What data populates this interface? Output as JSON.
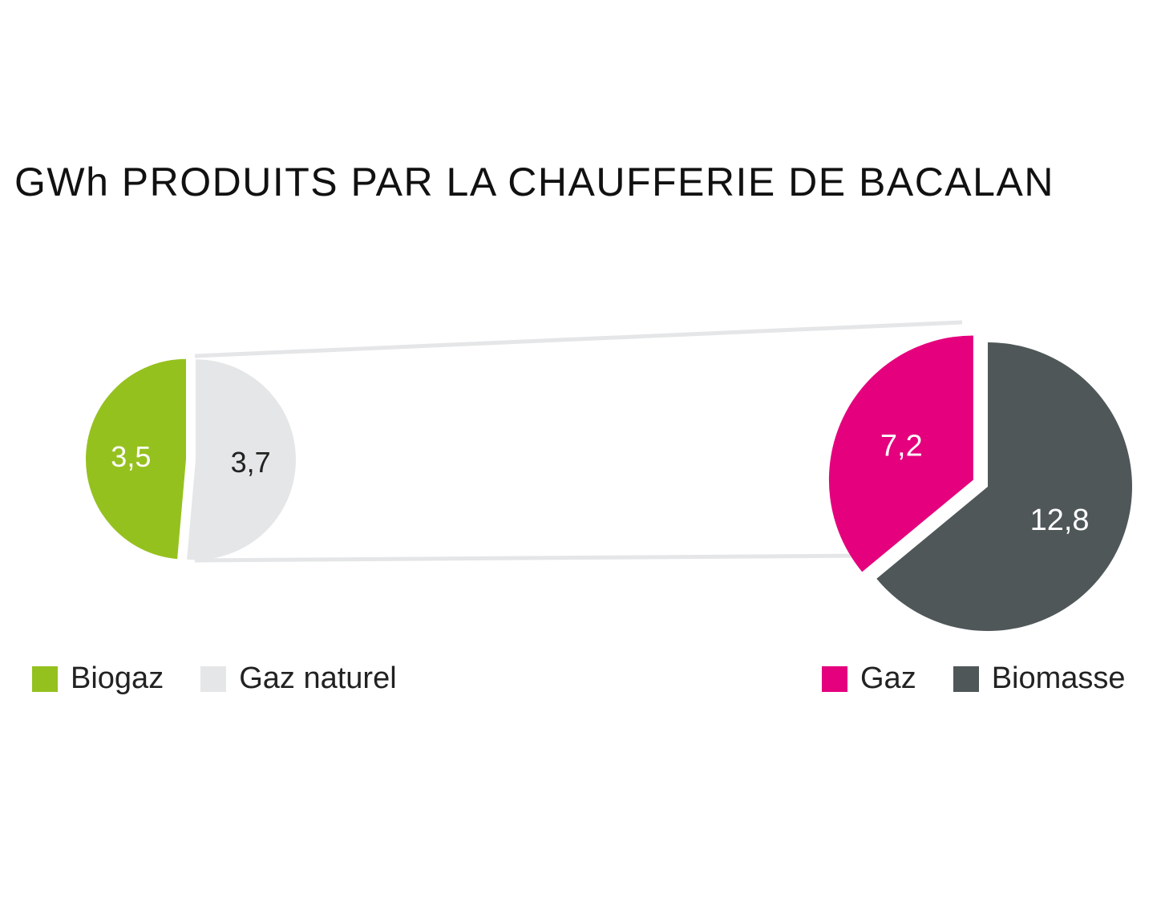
{
  "title": "GWh PRODUITS PAR LA CHAUFFERIE DE BACALAN",
  "chart_data": [
    {
      "type": "pie",
      "categories": [
        "Biogaz",
        "Gaz naturel"
      ],
      "values": [
        3.5,
        3.7
      ],
      "value_labels": [
        "3,5",
        "3,7"
      ],
      "colors": [
        "#95c11f",
        "#e5e6e7"
      ],
      "label_colors": [
        "#ffffff",
        "#222222"
      ]
    },
    {
      "type": "pie",
      "categories": [
        "Gaz",
        "Biomasse"
      ],
      "values": [
        7.2,
        12.8
      ],
      "value_labels": [
        "7,2",
        "12,8"
      ],
      "colors": [
        "#e5007e",
        "#4f5759"
      ],
      "label_colors": [
        "#ffffff",
        "#ffffff"
      ]
    }
  ],
  "legend_left": [
    {
      "label": "Biogaz",
      "color": "#95c11f"
    },
    {
      "label": "Gaz naturel",
      "color": "#e5e6e7"
    }
  ],
  "legend_right": [
    {
      "label": "Gaz",
      "color": "#e5007e"
    },
    {
      "label": "Biomasse",
      "color": "#4f5759"
    }
  ]
}
